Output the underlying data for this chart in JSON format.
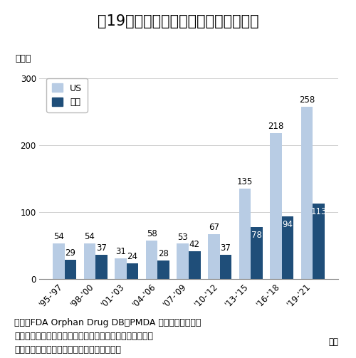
{
  "title": "図19　オーファン指定品目の承認状況",
  "ylabel": "品目数",
  "xlabel": "暦年",
  "categories": [
    "'95-'97",
    "'98-'00",
    "'01-'03",
    "'04-'06",
    "'07-'09",
    "'10-'12",
    "'13-'15",
    "'16-'18",
    "'19-'21"
  ],
  "us_values": [
    54,
    54,
    31,
    58,
    53,
    67,
    135,
    218,
    258
  ],
  "jp_values": [
    29,
    37,
    24,
    28,
    42,
    37,
    78,
    94,
    113
  ],
  "us_color": "#b8cce4",
  "jp_color": "#1f4e79",
  "ylim": [
    0,
    310
  ],
  "yticks": [
    0,
    100,
    200,
    300
  ],
  "legend_us": "US",
  "legend_jp": "日本",
  "source_text": "出所：FDA Orphan Drug DB、PMDA 希少疾病用医薬品\n　　　指定品目一覧表・希少疾病用再生医療等製品一覧表\n　　　をもとに医薬産業政策研究所にて作成",
  "bar_width": 0.38,
  "background_color": "#ffffff",
  "title_fontsize": 15,
  "label_fontsize": 9,
  "tick_fontsize": 8.5,
  "annotation_fontsize": 8.5,
  "source_fontsize": 9
}
